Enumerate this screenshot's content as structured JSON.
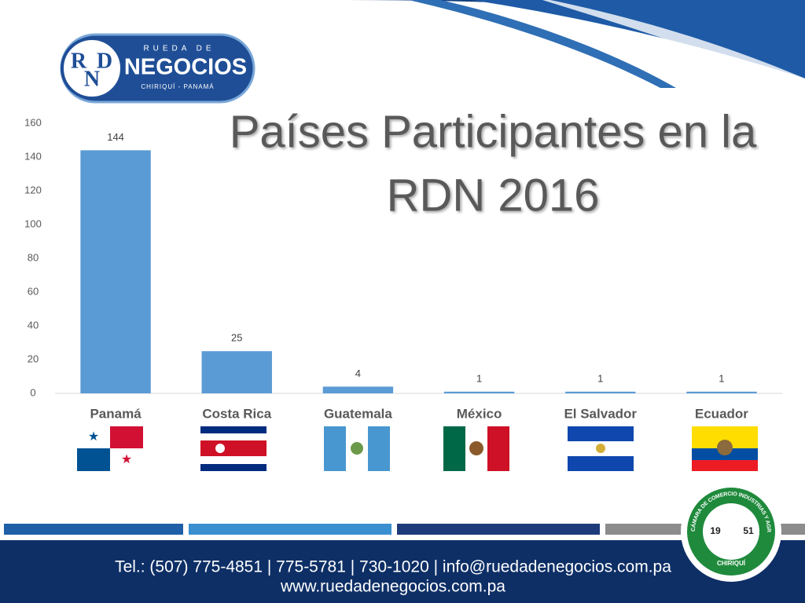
{
  "logo": {
    "letters": [
      "R",
      "D",
      "N"
    ],
    "top": "RUEDA DE",
    "name": "NEGOCIOS",
    "place": "CHIRIQUÍ - PANAMÁ"
  },
  "chart_data": {
    "type": "bar",
    "title": [
      "Países Participantes en la",
      "RDN 2016"
    ],
    "categories": [
      "Panamá",
      "Costa Rica",
      "Guatemala",
      "México",
      "El Salvador",
      "Ecuador"
    ],
    "values": [
      144,
      25,
      4,
      1,
      1,
      1
    ],
    "color": "#5b9bd5",
    "ylim": [
      0,
      160
    ],
    "yticks": [
      0,
      20,
      40,
      60,
      80,
      100,
      120,
      140,
      160
    ],
    "grid": false
  },
  "seal": {
    "name": "CÁMARA DE COMERCIO INDUSTRIAS Y AGRICULTURA",
    "place": "CHIRIQUÍ",
    "year": [
      "19",
      "51"
    ]
  },
  "footer": {
    "contact": "Tel.: (507) 775-4851 | 775-5781 | 730-1020 | info@ruedadenegocios.com.pa",
    "web": "www.ruedadenegocios.com.pa"
  }
}
